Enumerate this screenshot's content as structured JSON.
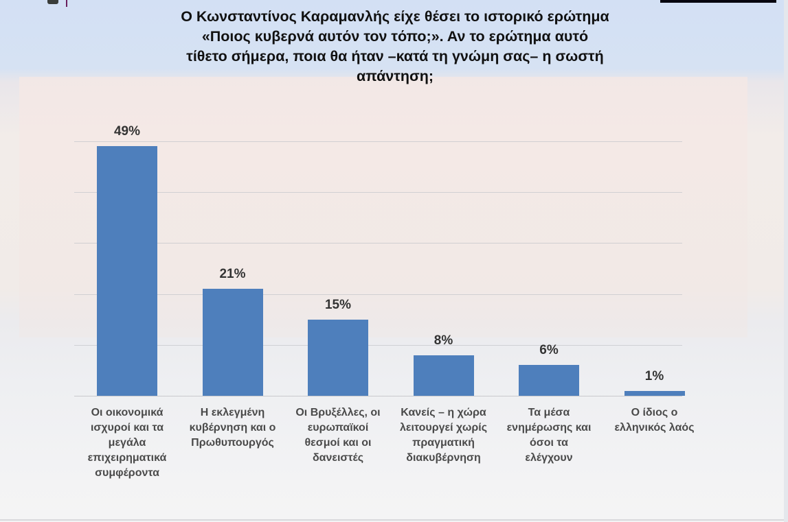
{
  "title": "Ο Κωνσταντίνος Καραμανλής είχε θέσει το ιστορικό ερώτημα «Ποιος κυβερνά αυτόν τον τόπο;». Αν το ερώτημα αυτό τίθετο σήμερα, ποια θα ήταν –κατά τη γνώμη σας– η σωστή απάντηση;",
  "title_lines": [
    "Ο Κωνσταντίνος Καραμανλής είχε θέσει το ιστορικό ερώτημα",
    "«Ποιος κυβερνά αυτόν τον τόπο;». Αν το ερώτημα αυτό",
    "τίθετο σήμερα, ποια θα ήταν –κατά τη γνώμη σας– η σωστή",
    "απάντηση;"
  ],
  "colors": {
    "bar": "#4e7fbc",
    "label_text": "#333333",
    "category_text": "#4a4a4a",
    "title_text": "#111111"
  },
  "bars": [
    {
      "value_label": "49%",
      "category": "Οι οικονομικά\nισχυροί και τα\nμεγάλα\nεπιχειρηματικά\nσυμφέροντα"
    },
    {
      "value_label": "21%",
      "category": "Η εκλεγμένη\nκυβέρνηση και ο\nΠρωθυπουργός"
    },
    {
      "value_label": "15%",
      "category": "Οι Βρυξέλλες, οι\nευρωπαϊκοί\nθεσμοί και οι\nδανειστές"
    },
    {
      "value_label": "8%",
      "category": "Κανείς – η χώρα\nλειτουργεί χωρίς\nπραγματική\nδιακυβέρνηση"
    },
    {
      "value_label": "6%",
      "category": "Τα μέσα\nενημέρωσης και\nόσοι τα\nελέγχουν"
    },
    {
      "value_label": "1%",
      "category": "Ο ίδιος ο\nελληνικός λαός"
    }
  ],
  "chart_data": {
    "type": "bar",
    "title": "Ο Κωνσταντίνος Καραμανλής είχε θέσει το ιστορικό ερώτημα «Ποιος κυβερνά αυτόν τον τόπο;». Αν το ερώτημα αυτό τίθετο σήμερα, ποια θα ήταν –κατά τη γνώμη σας– η σωστή απάντηση;",
    "categories": [
      "Οι οικονομικά ισχυροί και τα μεγάλα επιχειρηματικά συμφέροντα",
      "Η εκλεγμένη κυβέρνηση και ο Πρωθυπουργός",
      "Οι Βρυξέλλες, οι ευρωπαϊκοί θεσμοί και οι δανειστές",
      "Κανείς – η χώρα λειτουργεί χωρίς πραγματική διακυβέρνηση",
      "Τα μέσα ενημέρωσης και όσοι τα ελέγχουν",
      "Ο ίδιος ο ελληνικός λαός"
    ],
    "values": [
      49,
      21,
      15,
      8,
      6,
      1
    ],
    "value_labels": [
      "49%",
      "21%",
      "15%",
      "8%",
      "6%",
      "1%"
    ],
    "xlabel": "",
    "ylabel": "",
    "ylim": [
      0,
      50
    ],
    "y_axis_visible": false,
    "grid": true,
    "gridline_step": 10,
    "legend": "none",
    "unit": "%"
  }
}
